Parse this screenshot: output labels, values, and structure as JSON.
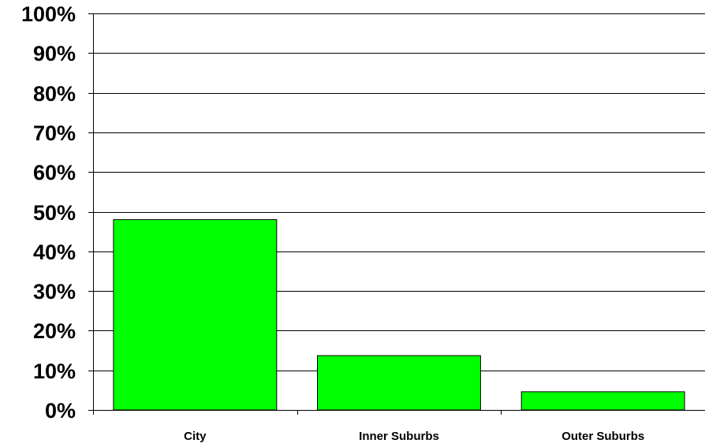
{
  "chart_data": {
    "type": "bar",
    "title": "",
    "xlabel": "",
    "ylabel": "",
    "categories": [
      "City",
      "Inner Suburbs",
      "Outer Suburbs"
    ],
    "values": [
      48,
      13.7,
      4.6
    ],
    "ylim": [
      0,
      100
    ],
    "yticks": [
      0,
      10,
      20,
      30,
      40,
      50,
      60,
      70,
      80,
      90,
      100
    ],
    "ytick_labels": [
      "0%",
      "10%",
      "20%",
      "30%",
      "40%",
      "50%",
      "60%",
      "70%",
      "80%",
      "90%",
      "100%"
    ],
    "grid": true,
    "legend": "none",
    "colors": {
      "bar_fill": "#00ff00",
      "bar_stroke": "#000000",
      "grid": "#000000",
      "axis": "#000000",
      "background": "#ffffff"
    }
  }
}
